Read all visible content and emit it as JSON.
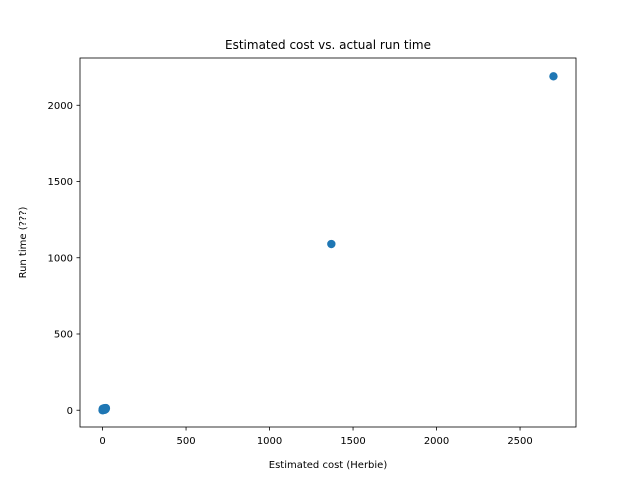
{
  "chart_data": {
    "type": "scatter",
    "title": "Estimated cost vs. actual run time",
    "xlabel": "Estimated cost (Herbie)",
    "ylabel": "Run time (???)",
    "xlim": [
      -135,
      2835
    ],
    "ylim": [
      -110,
      2310
    ],
    "xticks": [
      0,
      500,
      1000,
      1500,
      2000,
      2500
    ],
    "yticks": [
      0,
      500,
      1000,
      1500,
      2000
    ],
    "grid": false,
    "marker_color": "#1f77b4",
    "series": [
      {
        "points": [
          {
            "x": 0,
            "y": 0
          },
          {
            "x": 2,
            "y": 1
          },
          {
            "x": 4,
            "y": 2
          },
          {
            "x": 5,
            "y": 3
          },
          {
            "x": 6,
            "y": 4
          },
          {
            "x": 8,
            "y": 5
          },
          {
            "x": 10,
            "y": 6
          },
          {
            "x": 12,
            "y": 7
          },
          {
            "x": 14,
            "y": 9
          },
          {
            "x": 16,
            "y": 10
          },
          {
            "x": 18,
            "y": 12
          },
          {
            "x": 20,
            "y": 14
          },
          {
            "x": 3,
            "y": 6
          },
          {
            "x": 7,
            "y": 2
          },
          {
            "x": 9,
            "y": 11
          },
          {
            "x": 13,
            "y": 3
          },
          {
            "x": 1,
            "y": 9
          },
          {
            "x": 15,
            "y": 5
          },
          {
            "x": 19,
            "y": 8
          },
          {
            "x": 11,
            "y": 13
          },
          {
            "x": 1370,
            "y": 1090
          },
          {
            "x": 2700,
            "y": 2190
          }
        ]
      }
    ]
  }
}
